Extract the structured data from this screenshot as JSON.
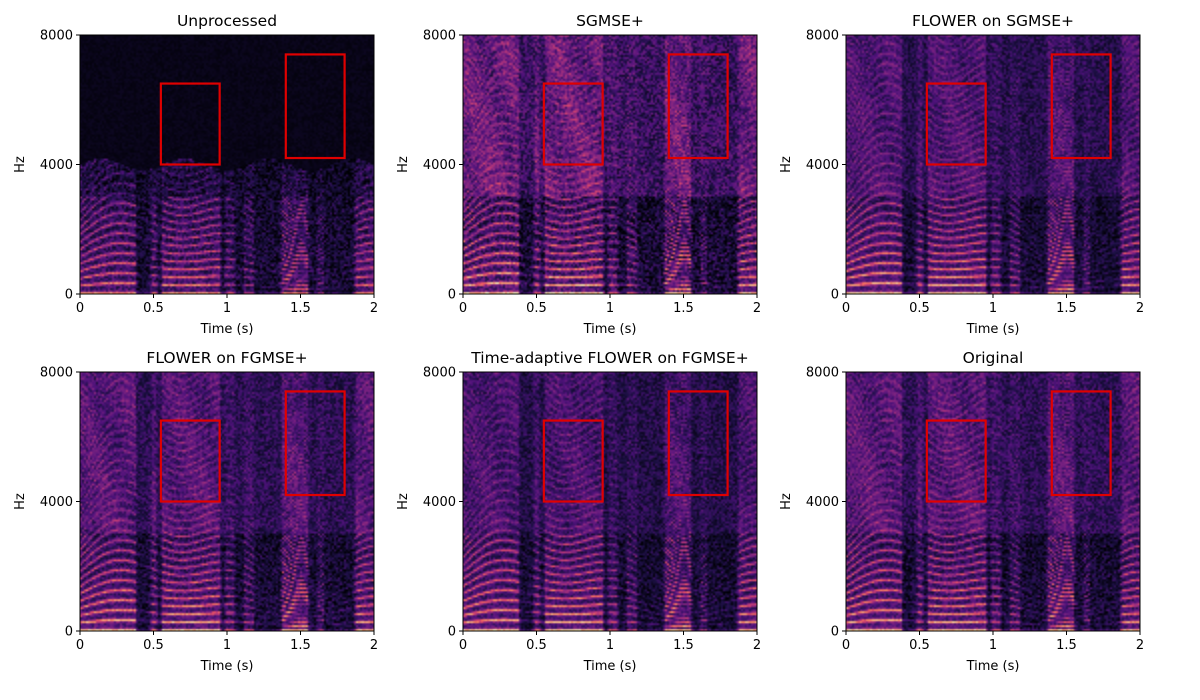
{
  "figure": {
    "colormap": "magma",
    "highlight_color": "#e00000"
  },
  "chart_data": [
    {
      "type": "heatmap",
      "title": "Unprocessed",
      "xlabel": "Time (s)",
      "ylabel": "Hz",
      "xlim": [
        0,
        2
      ],
      "ylim": [
        0,
        8000
      ],
      "xticks": [
        "0",
        "0.5",
        "1",
        "1.5",
        "2"
      ],
      "yticks": [
        "0",
        "4000",
        "8000"
      ],
      "bandwidth_cutoff_hz": 4000,
      "highlight_boxes": [
        {
          "t0": 0.55,
          "t1": 0.95,
          "f0": 4000,
          "f1": 6500
        },
        {
          "t0": 1.4,
          "t1": 1.8,
          "f0": 4200,
          "f1": 7400
        }
      ]
    },
    {
      "type": "heatmap",
      "title": "SGMSE+",
      "xlabel": "Time (s)",
      "ylabel": "Hz",
      "xlim": [
        0,
        2
      ],
      "ylim": [
        0,
        8000
      ],
      "xticks": [
        "0",
        "0.5",
        "1",
        "1.5",
        "2"
      ],
      "yticks": [
        "0",
        "4000",
        "8000"
      ],
      "highlight_boxes": [
        {
          "t0": 0.55,
          "t1": 0.95,
          "f0": 4000,
          "f1": 6500
        },
        {
          "t0": 1.4,
          "t1": 1.8,
          "f0": 4200,
          "f1": 7400
        }
      ]
    },
    {
      "type": "heatmap",
      "title": "FLOWER on SGMSE+",
      "xlabel": "Time (s)",
      "ylabel": "Hz",
      "xlim": [
        0,
        2
      ],
      "ylim": [
        0,
        8000
      ],
      "xticks": [
        "0",
        "0.5",
        "1",
        "1.5",
        "2"
      ],
      "yticks": [
        "0",
        "4000",
        "8000"
      ],
      "highlight_boxes": [
        {
          "t0": 0.55,
          "t1": 0.95,
          "f0": 4000,
          "f1": 6500
        },
        {
          "t0": 1.4,
          "t1": 1.8,
          "f0": 4200,
          "f1": 7400
        }
      ]
    },
    {
      "type": "heatmap",
      "title": "FLOWER on FGMSE+",
      "xlabel": "Time (s)",
      "ylabel": "Hz",
      "xlim": [
        0,
        2
      ],
      "ylim": [
        0,
        8000
      ],
      "xticks": [
        "0",
        "0.5",
        "1",
        "1.5",
        "2"
      ],
      "yticks": [
        "0",
        "4000",
        "8000"
      ],
      "highlight_boxes": [
        {
          "t0": 0.55,
          "t1": 0.95,
          "f0": 4000,
          "f1": 6500
        },
        {
          "t0": 1.4,
          "t1": 1.8,
          "f0": 4200,
          "f1": 7400
        }
      ]
    },
    {
      "type": "heatmap",
      "title": "Time-adaptive FLOWER on FGMSE+",
      "xlabel": "Time (s)",
      "ylabel": "Hz",
      "xlim": [
        0,
        2
      ],
      "ylim": [
        0,
        8000
      ],
      "xticks": [
        "0",
        "0.5",
        "1",
        "1.5",
        "2"
      ],
      "yticks": [
        "0",
        "4000",
        "8000"
      ],
      "highlight_boxes": [
        {
          "t0": 0.55,
          "t1": 0.95,
          "f0": 4000,
          "f1": 6500
        },
        {
          "t0": 1.4,
          "t1": 1.8,
          "f0": 4200,
          "f1": 7400
        }
      ]
    },
    {
      "type": "heatmap",
      "title": "Original",
      "xlabel": "Time (s)",
      "ylabel": "Hz",
      "xlim": [
        0,
        2
      ],
      "ylim": [
        0,
        8000
      ],
      "xticks": [
        "0",
        "0.5",
        "1",
        "1.5",
        "2"
      ],
      "yticks": [
        "0",
        "4000",
        "8000"
      ],
      "highlight_boxes": [
        {
          "t0": 0.55,
          "t1": 0.95,
          "f0": 4000,
          "f1": 6500
        },
        {
          "t0": 1.4,
          "t1": 1.8,
          "f0": 4200,
          "f1": 7400
        }
      ]
    }
  ]
}
